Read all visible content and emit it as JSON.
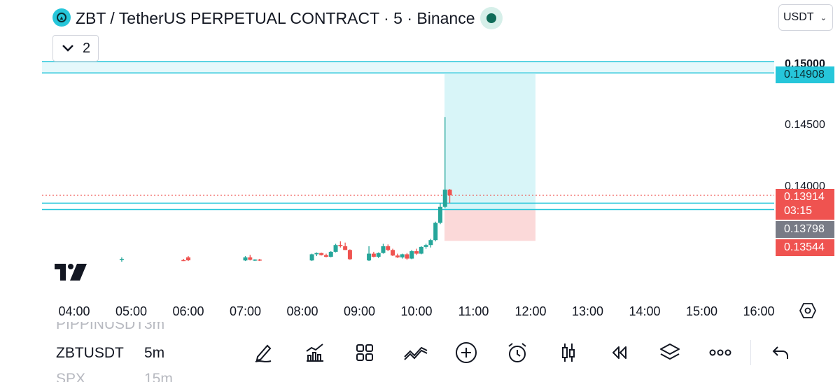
{
  "header": {
    "title": "ZBT / TetherUS PERPETUAL CONTRACT · 5 · Binance",
    "currency": "USDT",
    "indicator_count": "2"
  },
  "price_axis": {
    "ticks": [
      "0.15000",
      "0.14500",
      "0.14000"
    ]
  },
  "tags": {
    "target": "0.14908",
    "current": "0.13914",
    "countdown": "03:15",
    "entry": "0.13798",
    "stop": "0.13544"
  },
  "time_axis": [
    "04:00",
    "05:00",
    "06:00",
    "07:00",
    "08:00",
    "09:00",
    "10:00",
    "11:00",
    "12:00",
    "13:00",
    "14:00",
    "15:00",
    "16:00"
  ],
  "symbol_list": [
    {
      "symbol": "PIPPINUSDT",
      "interval": "3m"
    },
    {
      "symbol": "ZBTUSDT",
      "interval": "5m"
    },
    {
      "symbol": "SPX",
      "interval": "15m"
    }
  ],
  "toolbar": [
    "draw-icon",
    "indicators-icon",
    "layouts-icon",
    "trend-icon",
    "add-icon",
    "alert-icon",
    "candles-icon",
    "replay-icon",
    "layers-icon",
    "more-icon",
    "undo-icon"
  ],
  "colors": {
    "up": "#26a69a",
    "down": "#ef5350",
    "zone": "#26c6da",
    "entry_tag": "#787b86"
  },
  "chart_data": {
    "type": "candlestick",
    "interval": "5m",
    "price_range": [
      0.1336,
      0.1518
    ],
    "horizontal_levels": [
      0.15,
      0.14908,
      0.1385,
      0.13798
    ],
    "position": {
      "side": "long",
      "entry": 0.13798,
      "target": 0.14908,
      "stop": 0.13544
    },
    "current_price": 0.13914,
    "candles": [
      {
        "t": "04:50",
        "o": 0.13395,
        "h": 0.1341,
        "l": 0.13375,
        "c": 0.13398
      },
      {
        "t": "05:55",
        "o": 0.13388,
        "h": 0.13398,
        "l": 0.1338,
        "c": 0.13384
      },
      {
        "t": "06:00",
        "o": 0.1341,
        "h": 0.1342,
        "l": 0.1338,
        "c": 0.13386
      },
      {
        "t": "07:00",
        "o": 0.13385,
        "h": 0.1342,
        "l": 0.1338,
        "c": 0.1341
      },
      {
        "t": "07:05",
        "o": 0.1341,
        "h": 0.1343,
        "l": 0.13385,
        "c": 0.1339
      },
      {
        "t": "07:10",
        "o": 0.13388,
        "h": 0.13395,
        "l": 0.1338,
        "c": 0.13392
      },
      {
        "t": "07:15",
        "o": 0.13392,
        "h": 0.13398,
        "l": 0.1338,
        "c": 0.13385
      },
      {
        "t": "08:10",
        "o": 0.13385,
        "h": 0.1344,
        "l": 0.1338,
        "c": 0.13435
      },
      {
        "t": "08:15",
        "o": 0.13435,
        "h": 0.1345,
        "l": 0.1342,
        "c": 0.13445
      },
      {
        "t": "08:20",
        "o": 0.13445,
        "h": 0.13448,
        "l": 0.13425,
        "c": 0.13428
      },
      {
        "t": "08:25",
        "o": 0.13428,
        "h": 0.1344,
        "l": 0.1341,
        "c": 0.13415
      },
      {
        "t": "08:30",
        "o": 0.13415,
        "h": 0.1346,
        "l": 0.1341,
        "c": 0.13455
      },
      {
        "t": "08:35",
        "o": 0.13455,
        "h": 0.1352,
        "l": 0.1345,
        "c": 0.1351
      },
      {
        "t": "08:40",
        "o": 0.1351,
        "h": 0.1354,
        "l": 0.1349,
        "c": 0.135
      },
      {
        "t": "08:45",
        "o": 0.135,
        "h": 0.1353,
        "l": 0.1347,
        "c": 0.1347
      },
      {
        "t": "08:50",
        "o": 0.1347,
        "h": 0.13475,
        "l": 0.1339,
        "c": 0.13395
      },
      {
        "t": "09:10",
        "o": 0.13385,
        "h": 0.135,
        "l": 0.1338,
        "c": 0.1344
      },
      {
        "t": "09:15",
        "o": 0.1344,
        "h": 0.13455,
        "l": 0.1341,
        "c": 0.13415
      },
      {
        "t": "09:20",
        "o": 0.13415,
        "h": 0.1345,
        "l": 0.13405,
        "c": 0.13445
      },
      {
        "t": "09:25",
        "o": 0.13445,
        "h": 0.1352,
        "l": 0.1344,
        "c": 0.135
      },
      {
        "t": "09:30",
        "o": 0.135,
        "h": 0.13515,
        "l": 0.1346,
        "c": 0.1347
      },
      {
        "t": "09:35",
        "o": 0.1347,
        "h": 0.1348,
        "l": 0.1342,
        "c": 0.13425
      },
      {
        "t": "09:40",
        "o": 0.13425,
        "h": 0.1344,
        "l": 0.13405,
        "c": 0.1341
      },
      {
        "t": "09:45",
        "o": 0.1341,
        "h": 0.1344,
        "l": 0.134,
        "c": 0.13435
      },
      {
        "t": "09:50",
        "o": 0.13435,
        "h": 0.13445,
        "l": 0.1339,
        "c": 0.134
      },
      {
        "t": "09:55",
        "o": 0.134,
        "h": 0.1347,
        "l": 0.13395,
        "c": 0.1346
      },
      {
        "t": "10:00",
        "o": 0.1346,
        "h": 0.1348,
        "l": 0.1343,
        "c": 0.1344
      },
      {
        "t": "10:05",
        "o": 0.1344,
        "h": 0.135,
        "l": 0.13435,
        "c": 0.13495
      },
      {
        "t": "10:10",
        "o": 0.13495,
        "h": 0.1352,
        "l": 0.1348,
        "c": 0.1351
      },
      {
        "t": "10:15",
        "o": 0.1351,
        "h": 0.1356,
        "l": 0.1349,
        "c": 0.1355
      },
      {
        "t": "10:20",
        "o": 0.1355,
        "h": 0.137,
        "l": 0.1354,
        "c": 0.1369
      },
      {
        "t": "10:25",
        "o": 0.1369,
        "h": 0.1385,
        "l": 0.1368,
        "c": 0.1382
      },
      {
        "t": "10:30",
        "o": 0.1382,
        "h": 0.1455,
        "l": 0.1381,
        "c": 0.1396
      },
      {
        "t": "10:35",
        "o": 0.1396,
        "h": 0.13965,
        "l": 0.1385,
        "c": 0.13914
      }
    ]
  }
}
